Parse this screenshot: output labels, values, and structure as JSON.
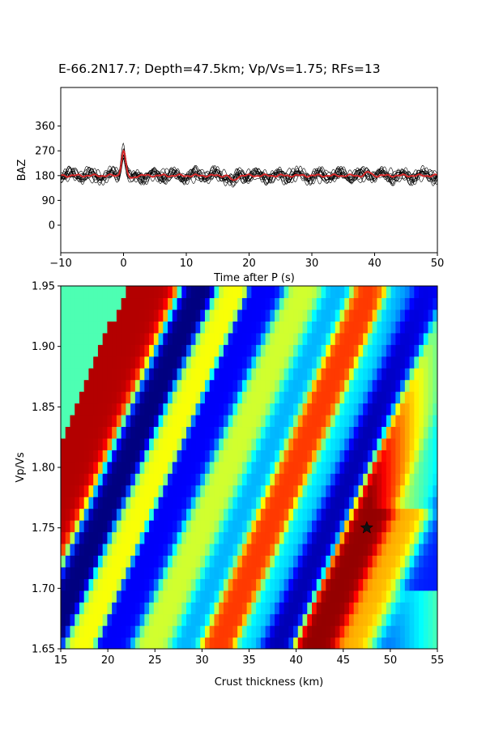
{
  "title": "E-66.2N17.7; Depth=47.5km; Vp/Vs=1.75; RFs=13",
  "chart_data": [
    {
      "type": "line",
      "description_panel": "receiver-function traces",
      "xlabel": "Time after P (s)",
      "ylabel": "BAZ",
      "xlim": [
        -10,
        50
      ],
      "ylim": [
        -100,
        500
      ],
      "xticks": [
        -10,
        0,
        10,
        20,
        30,
        40,
        50
      ],
      "yticks": [
        0,
        90,
        180,
        270,
        360
      ],
      "trace_count": 13,
      "trace_color": "#000000",
      "stack_color": "#d62728",
      "baseline": 180,
      "stack_series": {
        "x": [
          -10,
          -5,
          -2,
          -1,
          0,
          1,
          2,
          5,
          9,
          14,
          17,
          20,
          25,
          30,
          35,
          39,
          42,
          50
        ],
        "y": [
          185,
          188,
          186,
          182,
          275,
          176,
          178,
          182,
          178,
          182,
          160,
          178,
          180,
          183,
          178,
          200,
          182,
          185
        ]
      },
      "grid": false
    },
    {
      "type": "heatmap",
      "description_panel": "H-k stacking grid",
      "xlabel": "Crust thickness (km)",
      "ylabel": "Vp/Vs",
      "xlim": [
        15,
        55
      ],
      "ylim": [
        1.65,
        1.95
      ],
      "xticks": [
        15,
        20,
        25,
        30,
        35,
        40,
        45,
        50,
        55
      ],
      "yticks": [
        "1.65",
        "1.70",
        "1.75",
        "1.80",
        "1.85",
        "1.90",
        "1.95"
      ],
      "colormap": "jet",
      "best_fit": {
        "thickness": 47.5,
        "vpvs": 1.75,
        "marker": "star"
      },
      "grid": false
    }
  ]
}
